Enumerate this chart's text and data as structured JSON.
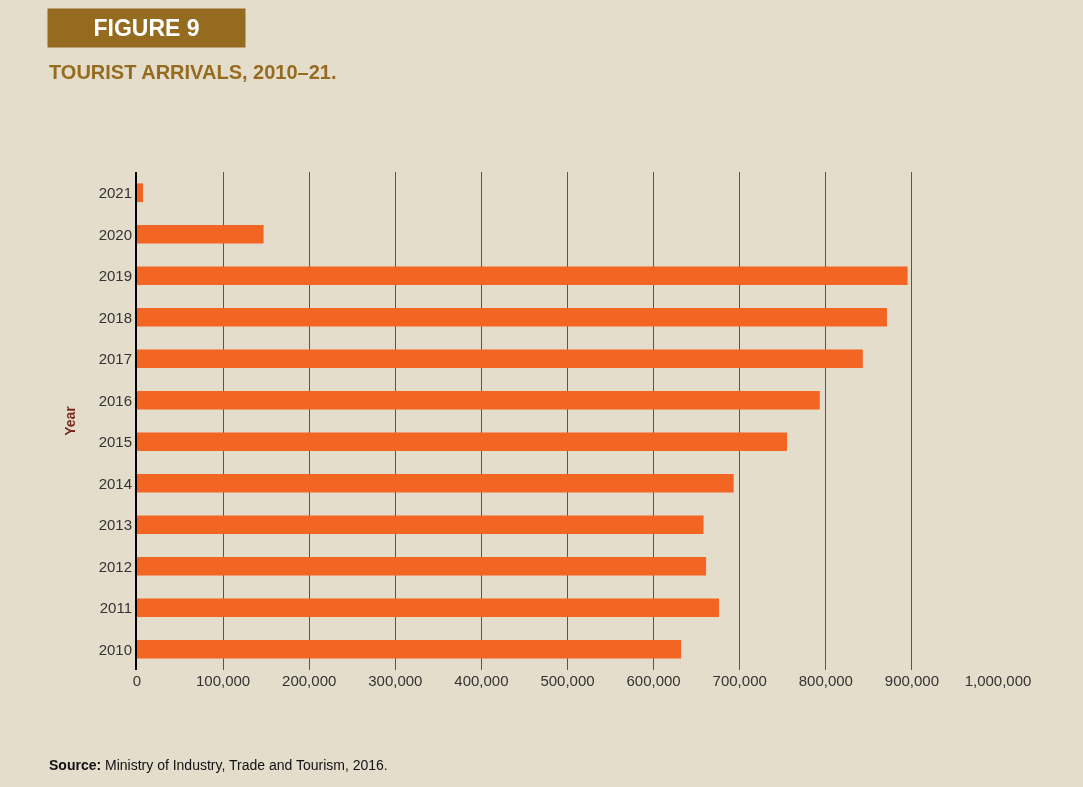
{
  "chart_data": {
    "type": "bar",
    "orientation": "horizontal",
    "title": "FIGURE 9",
    "subtitle": "TOURIST ARRIVALS, 2010–21.",
    "ylabel": "Year",
    "categories": [
      "2021",
      "2020",
      "2019",
      "2018",
      "2017",
      "2016",
      "2015",
      "2014",
      "2013",
      "2012",
      "2011",
      "2010"
    ],
    "values": [
      7000,
      147000,
      895000,
      871000,
      843000,
      793000,
      755000,
      693000,
      658000,
      661000,
      676000,
      632000
    ],
    "color": "#f26522",
    "xlim": [
      0,
      1000000
    ],
    "xticks": [
      {
        "value": 0,
        "label": "0"
      },
      {
        "value": 100000,
        "label": "100,000"
      },
      {
        "value": 200000,
        "label": "200,000"
      },
      {
        "value": 300000,
        "label": "300,000"
      },
      {
        "value": 400000,
        "label": "400,000"
      },
      {
        "value": 500000,
        "label": "500,000"
      },
      {
        "value": 600000,
        "label": "600,000"
      },
      {
        "value": 700000,
        "label": "700,000"
      },
      {
        "value": 800000,
        "label": "800,000"
      },
      {
        "value": 900000,
        "label": "900,000"
      },
      {
        "value": 1000000,
        "label": "1,000,000"
      }
    ],
    "grid": "x",
    "annotations": [
      "Source: Ministry of Industry, Trade and Tourism, 2016."
    ]
  }
}
